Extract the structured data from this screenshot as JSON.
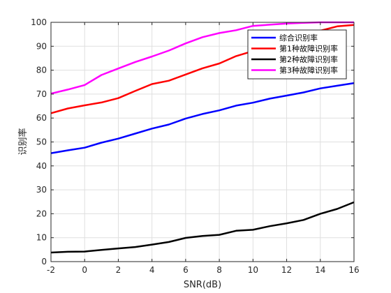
{
  "chart_data": {
    "type": "line",
    "xlabel": "SNR(dB)",
    "ylabel": "识别率",
    "xlim": [
      -2,
      16
    ],
    "ylim": [
      0,
      100
    ],
    "xticks": [
      -2,
      0,
      2,
      4,
      6,
      8,
      10,
      12,
      14,
      16
    ],
    "yticks": [
      0,
      10,
      20,
      30,
      40,
      50,
      60,
      70,
      80,
      90,
      100
    ],
    "grid": true,
    "legend_position": "top-right",
    "x": [
      -2,
      -1,
      0,
      1,
      2,
      3,
      4,
      5,
      6,
      7,
      8,
      9,
      10,
      11,
      12,
      13,
      14,
      15,
      16
    ],
    "series": [
      {
        "name": "综合识别率",
        "color": "#0000ff",
        "values": [
          45.3,
          46.5,
          47.6,
          49.7,
          51.4,
          53.5,
          55.6,
          57.3,
          59.8,
          61.7,
          63.2,
          65.2,
          66.4,
          68.1,
          69.4,
          70.7,
          72.4,
          73.5,
          74.6
        ]
      },
      {
        "name": "第1种故障识别率",
        "color": "#ff0000",
        "values": [
          62.0,
          64.0,
          65.3,
          66.5,
          68.3,
          71.3,
          74.2,
          75.6,
          78.2,
          80.8,
          82.8,
          85.9,
          88.0,
          90.5,
          92.5,
          94.5,
          96.5,
          98.3,
          98.9
        ]
      },
      {
        "name": "第2种故障识别率",
        "color": "#000000",
        "values": [
          3.8,
          4.1,
          4.2,
          4.9,
          5.5,
          6.1,
          7.1,
          8.2,
          9.9,
          10.7,
          11.2,
          12.9,
          13.3,
          14.8,
          16.0,
          17.4,
          20.0,
          22.0,
          24.8
        ]
      },
      {
        "name": "第3种故障识别率",
        "color": "#ff00ff",
        "values": [
          70.2,
          71.9,
          73.8,
          78.0,
          80.7,
          83.4,
          85.7,
          88.2,
          91.2,
          93.8,
          95.5,
          96.7,
          98.5,
          99.0,
          99.5,
          99.8,
          100.0,
          100.0,
          100.0
        ]
      }
    ]
  }
}
